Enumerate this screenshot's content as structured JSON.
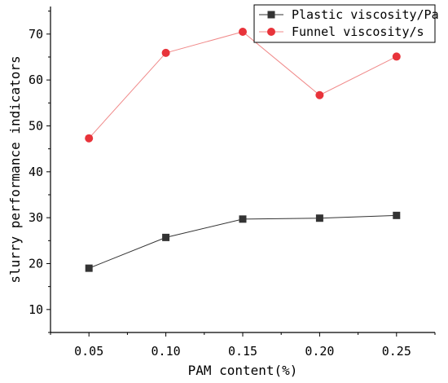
{
  "chart_data": {
    "type": "line",
    "title": "",
    "xlabel": "PAM content(%)",
    "ylabel": "slurry performance indicators",
    "x": [
      0.05,
      0.1,
      0.15,
      0.2,
      0.25
    ],
    "x_tick_labels": [
      "0.05",
      "0.10",
      "0.15",
      "0.20",
      "0.25"
    ],
    "xlim": [
      0.025,
      0.275
    ],
    "ylim": [
      5,
      76
    ],
    "y_ticks": [
      10,
      20,
      30,
      40,
      50,
      60,
      70
    ],
    "y_tick_labels": [
      "10",
      "20",
      "30",
      "40",
      "50",
      "60",
      "70"
    ],
    "grid": false,
    "legend_position": "top-right",
    "series": [
      {
        "name": "Plastic viscosity/Pa",
        "marker": "square",
        "color": "#333333",
        "values": [
          19.0,
          25.7,
          29.7,
          29.9,
          30.5
        ]
      },
      {
        "name": "Funnel viscosity/s",
        "marker": "circle",
        "color": "#e8333a",
        "line_color": "#f08a8a",
        "values": [
          47.3,
          65.9,
          70.5,
          56.7,
          65.1
        ]
      }
    ]
  }
}
